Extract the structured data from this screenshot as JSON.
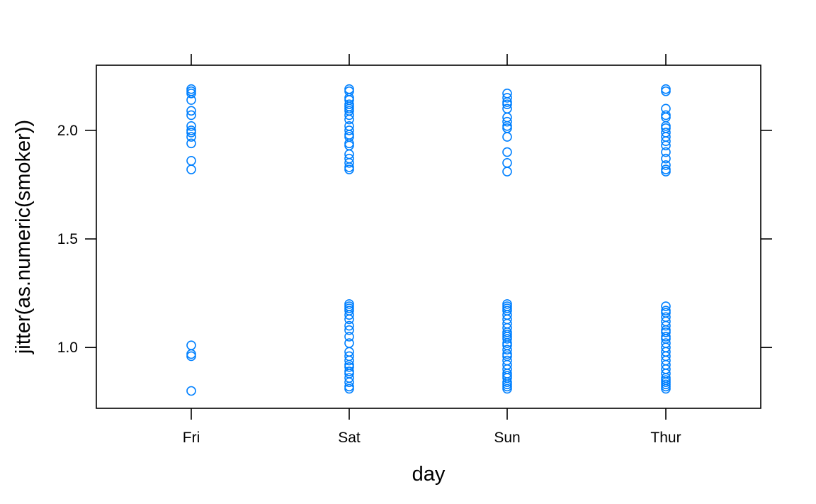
{
  "chart_data": {
    "type": "scatter",
    "title": "",
    "xlabel": "day",
    "ylabel": "jitter(as.numeric(smoker))",
    "categories": [
      "Fri",
      "Sat",
      "Sun",
      "Thur"
    ],
    "ylim": [
      0.72,
      2.3
    ],
    "yticks": [
      1.0,
      1.5,
      2.0
    ],
    "ytick_labels": [
      "1.0",
      "1.5",
      "2.0"
    ],
    "point_color": "#0080ff",
    "marker": "open-circle",
    "grid": false,
    "series": [
      {
        "category": "Fri",
        "y": [
          2.19,
          2.18,
          2.17,
          2.14,
          2.09,
          2.07,
          2.02,
          2.0,
          1.99,
          1.97,
          1.94,
          1.86,
          1.82,
          1.01,
          0.97,
          0.96,
          0.8
        ]
      },
      {
        "category": "Sat",
        "y": [
          2.19,
          2.18,
          2.15,
          2.14,
          2.12,
          2.11,
          2.1,
          2.09,
          2.07,
          2.05,
          2.02,
          2.0,
          1.98,
          1.97,
          1.94,
          1.93,
          1.89,
          1.87,
          1.85,
          1.83,
          1.82,
          1.2,
          1.19,
          1.18,
          1.17,
          1.15,
          1.13,
          1.1,
          1.08,
          1.05,
          1.02,
          0.98,
          0.96,
          0.94,
          0.92,
          0.91,
          0.89,
          0.88,
          0.86,
          0.84,
          0.82,
          0.81
        ]
      },
      {
        "category": "Sun",
        "y": [
          2.17,
          2.15,
          2.13,
          2.12,
          2.1,
          2.06,
          2.04,
          2.02,
          2.01,
          1.97,
          1.9,
          1.85,
          1.81,
          1.2,
          1.19,
          1.18,
          1.17,
          1.15,
          1.13,
          1.11,
          1.09,
          1.07,
          1.06,
          1.05,
          1.04,
          1.02,
          1.01,
          0.99,
          0.97,
          0.96,
          0.94,
          0.92,
          0.9,
          0.88,
          0.87,
          0.86,
          0.84,
          0.83,
          0.82,
          0.81
        ]
      },
      {
        "category": "Thur",
        "y": [
          2.19,
          2.18,
          2.1,
          2.07,
          2.06,
          2.02,
          2.01,
          1.99,
          1.97,
          1.95,
          1.93,
          1.9,
          1.87,
          1.84,
          1.82,
          1.81,
          1.19,
          1.17,
          1.16,
          1.14,
          1.12,
          1.1,
          1.08,
          1.07,
          1.05,
          1.04,
          1.02,
          1.0,
          0.98,
          0.96,
          0.94,
          0.92,
          0.9,
          0.88,
          0.86,
          0.85,
          0.84,
          0.83,
          0.82,
          0.81
        ]
      }
    ]
  }
}
